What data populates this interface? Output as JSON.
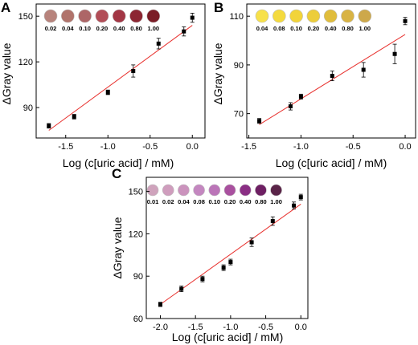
{
  "chart_data": [
    {
      "panel": "A",
      "type": "scatter",
      "xlabel": "Log (c[uric acid] / mM)",
      "ylabel": "ΔGray value",
      "xlim": [
        -1.85,
        0.15
      ],
      "ylim": [
        70,
        158
      ],
      "xticks": [
        "-1.5",
        "-1.0",
        "-0.5",
        "0.0"
      ],
      "xtick_values": [
        -1.5,
        -1.0,
        -0.5,
        0.0
      ],
      "yticks": [
        "90",
        "120",
        "150"
      ],
      "ytick_values": [
        90,
        120,
        150
      ],
      "points": [
        {
          "x": -1.7,
          "y": 78,
          "err": 1.5
        },
        {
          "x": -1.4,
          "y": 84,
          "err": 1.5
        },
        {
          "x": -1.0,
          "y": 100,
          "err": 1.5
        },
        {
          "x": -0.7,
          "y": 114,
          "err": 4
        },
        {
          "x": -0.4,
          "y": 132,
          "err": 3.5
        },
        {
          "x": -0.1,
          "y": 140,
          "err": 3
        },
        {
          "x": 0.0,
          "y": 149,
          "err": 3
        }
      ],
      "fit_line": {
        "x": [
          -1.7,
          0.0
        ],
        "y": [
          75,
          144
        ],
        "color": "#e8322f"
      },
      "swatches": [
        {
          "label": "0.02",
          "color": "#b7837c"
        },
        {
          "label": "0.04",
          "color": "#b0736b"
        },
        {
          "label": "0.10",
          "color": "#ad6667"
        },
        {
          "label": "0.20",
          "color": "#b24d57"
        },
        {
          "label": "0.40",
          "color": "#a23644"
        },
        {
          "label": "0.80",
          "color": "#8c2632"
        },
        {
          "label": "1.00",
          "color": "#7a1c26"
        }
      ]
    },
    {
      "panel": "B",
      "type": "scatter",
      "xlabel": "Log (c[uric acid] / mM)",
      "ylabel": "ΔGray value",
      "xlim": [
        -1.52,
        0.1
      ],
      "ylim": [
        60,
        115
      ],
      "xticks": [
        "-1.5",
        "-1.0",
        "-0.5",
        "0.0"
      ],
      "xtick_values": [
        -1.5,
        -1.0,
        -0.5,
        0.0
      ],
      "yticks": [
        "70",
        "90",
        "110"
      ],
      "ytick_values": [
        70,
        90,
        110
      ],
      "points": [
        {
          "x": -1.4,
          "y": 67,
          "err": 1
        },
        {
          "x": -1.1,
          "y": 73,
          "err": 1.5
        },
        {
          "x": -1.0,
          "y": 77,
          "err": 1
        },
        {
          "x": -0.7,
          "y": 85.5,
          "err": 2
        },
        {
          "x": -0.4,
          "y": 88,
          "err": 3
        },
        {
          "x": -0.1,
          "y": 94.5,
          "err": 4
        },
        {
          "x": 0.0,
          "y": 108,
          "err": 1.5
        }
      ],
      "fit_line": {
        "x": [
          -1.4,
          0.0
        ],
        "y": [
          65.5,
          102.5
        ],
        "color": "#e8322f"
      },
      "swatches": [
        {
          "label": "0.04",
          "color": "#f7e14a"
        },
        {
          "label": "0.08",
          "color": "#f4da3e"
        },
        {
          "label": "0.10",
          "color": "#f2d43a"
        },
        {
          "label": "0.20",
          "color": "#eccd3a"
        },
        {
          "label": "0.40",
          "color": "#e0bd3c"
        },
        {
          "label": "0.80",
          "color": "#d8b344"
        },
        {
          "label": "1.00",
          "color": "#cda84a"
        }
      ]
    },
    {
      "panel": "C",
      "type": "scatter",
      "xlabel": "Log (c[uric acid] / mM)",
      "ylabel": "ΔGray value",
      "xlim": [
        -2.2,
        0.1
      ],
      "ylim": [
        60,
        160
      ],
      "xticks": [
        "-2.0",
        "-1.5",
        "-1.0",
        "-0.5",
        "0.0"
      ],
      "xtick_values": [
        -2.0,
        -1.5,
        -1.0,
        -0.5,
        0.0
      ],
      "yticks": [
        "60",
        "90",
        "120",
        "150"
      ],
      "ytick_values": [
        60,
        90,
        120,
        150
      ],
      "points": [
        {
          "x": -2.0,
          "y": 70,
          "err": 1.5
        },
        {
          "x": -1.7,
          "y": 81,
          "err": 2
        },
        {
          "x": -1.4,
          "y": 88,
          "err": 2
        },
        {
          "x": -1.1,
          "y": 96,
          "err": 2
        },
        {
          "x": -1.0,
          "y": 100,
          "err": 2
        },
        {
          "x": -0.7,
          "y": 114,
          "err": 3
        },
        {
          "x": -0.4,
          "y": 129,
          "err": 3
        },
        {
          "x": -0.1,
          "y": 140,
          "err": 2.5
        },
        {
          "x": 0.0,
          "y": 146,
          "err": 2
        }
      ],
      "fit_line": {
        "x": [
          -2.0,
          0.0
        ],
        "y": [
          70,
          141
        ],
        "color": "#e8322f"
      },
      "swatches": [
        {
          "label": "0.01",
          "color": "#cfa3bc"
        },
        {
          "label": "0.02",
          "color": "#cf9dbd"
        },
        {
          "label": "0.04",
          "color": "#cb93bd"
        },
        {
          "label": "0.08",
          "color": "#c487c0"
        },
        {
          "label": "0.10",
          "color": "#bb75b8"
        },
        {
          "label": "0.20",
          "color": "#a9509f"
        },
        {
          "label": "0.40",
          "color": "#8a2e84"
        },
        {
          "label": "0.80",
          "color": "#6e1f63"
        },
        {
          "label": "1.00",
          "color": "#5a2448"
        }
      ]
    }
  ]
}
